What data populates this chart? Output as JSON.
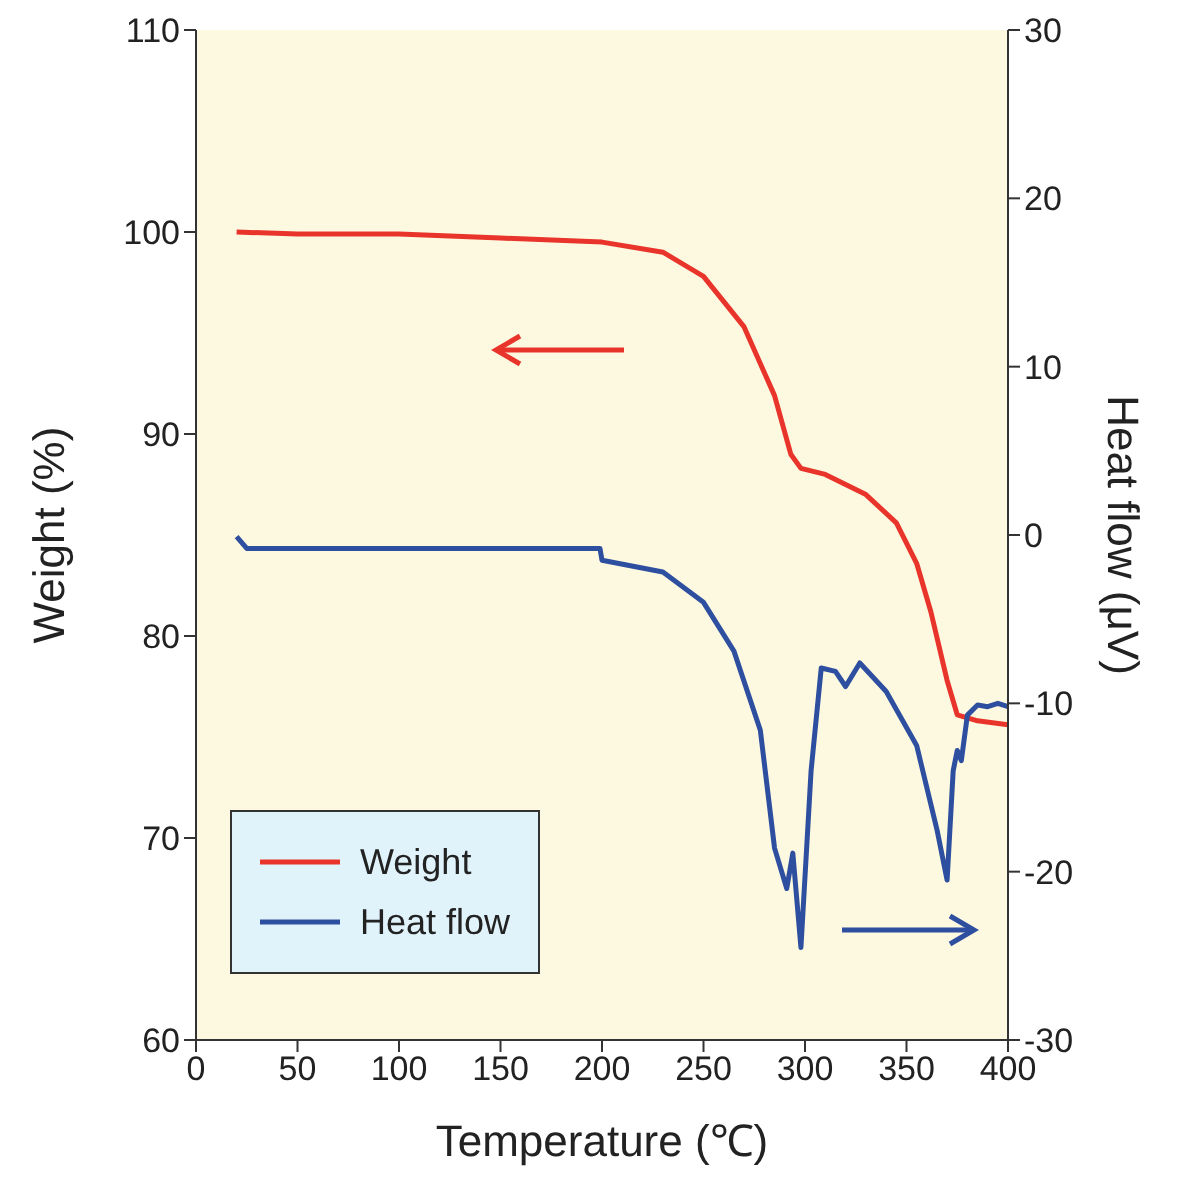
{
  "chart_data": {
    "type": "line",
    "xlabel": "Temperature (℃)",
    "ylabel": "Weight (%)",
    "y2label": "Heat flow (μV)",
    "xlim": [
      0,
      400
    ],
    "xticks": [
      0,
      50,
      100,
      150,
      200,
      250,
      300,
      350,
      400
    ],
    "ylim": [
      60,
      110
    ],
    "yticks": [
      60,
      70,
      80,
      90,
      100,
      110
    ],
    "y2lim": [
      -30,
      30
    ],
    "y2ticks": [
      -30,
      -20,
      -10,
      0,
      10,
      20,
      30
    ],
    "legend": "bottom left",
    "marker": "none",
    "line_style": "solid",
    "series": [
      {
        "name": "Weight",
        "color": "#e8342a",
        "x": [
          20,
          50,
          100,
          150,
          200,
          230,
          250,
          270,
          285,
          293,
          298,
          310,
          330,
          345,
          355,
          362,
          370,
          375,
          385,
          400
        ],
        "values": [
          100,
          99.9,
          99.9,
          99.7,
          99.5,
          99.0,
          97.8,
          95.3,
          91.9,
          89.0,
          88.3,
          88.0,
          87.0,
          85.6,
          83.6,
          81.2,
          77.8,
          76.1,
          75.8,
          75.6
        ]
      },
      {
        "name": "Heat flow",
        "color": "#2e4fa0",
        "axis": "y2",
        "x": [
          20,
          25,
          100,
          199,
          200,
          230,
          250,
          265,
          278,
          285,
          291,
          294,
          298,
          303,
          308,
          315,
          320,
          327,
          340,
          355,
          365,
          370,
          373,
          375,
          377,
          380,
          385,
          390,
          395,
          400
        ],
        "values": [
          -0.1,
          -0.8,
          -0.8,
          -0.8,
          -1.5,
          -2.2,
          -4,
          -6.9,
          -11.6,
          -18.6,
          -21,
          -18.9,
          -24.5,
          -14,
          -7.9,
          -8.1,
          -9,
          -7.6,
          -9.3,
          -12.5,
          -17.5,
          -20.5,
          -14,
          -12.8,
          -13.4,
          -10.7,
          -10.1,
          -10.2,
          -10,
          -10.2
        ]
      }
    ]
  }
}
